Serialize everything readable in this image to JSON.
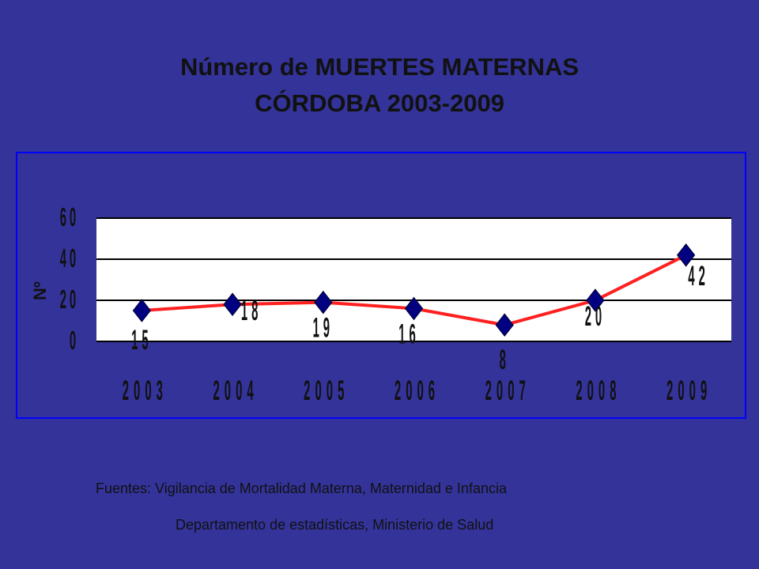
{
  "title": {
    "line1": "Número de MUERTES MATERNAS",
    "line2": "CÓRDOBA 2003-2009"
  },
  "source": {
    "line1": "Fuentes: Vigilancia de Mortalidad Materna, Maternidad e Infancia",
    "line2": "Departamento de estadísticas, Ministerio de Salud"
  },
  "chart_data": {
    "type": "line",
    "categories": [
      "2003",
      "2004",
      "2005",
      "2006",
      "2007",
      "2008",
      "2009"
    ],
    "values": [
      15,
      18,
      19,
      16,
      8,
      20,
      42
    ],
    "data_labels": [
      "15",
      "18",
      "19",
      "16",
      "8",
      "20",
      "42"
    ],
    "ylabel": "Nº",
    "ylim": [
      0,
      60
    ],
    "yticks": [
      "0",
      "20",
      "40",
      "60"
    ],
    "grid": true,
    "legend": "none",
    "colors": {
      "background": "#333399",
      "plot_area": "#ffffff",
      "line": "#ff2020",
      "marker": "#000080",
      "frame": "#0000ff",
      "text": "#111111"
    }
  }
}
